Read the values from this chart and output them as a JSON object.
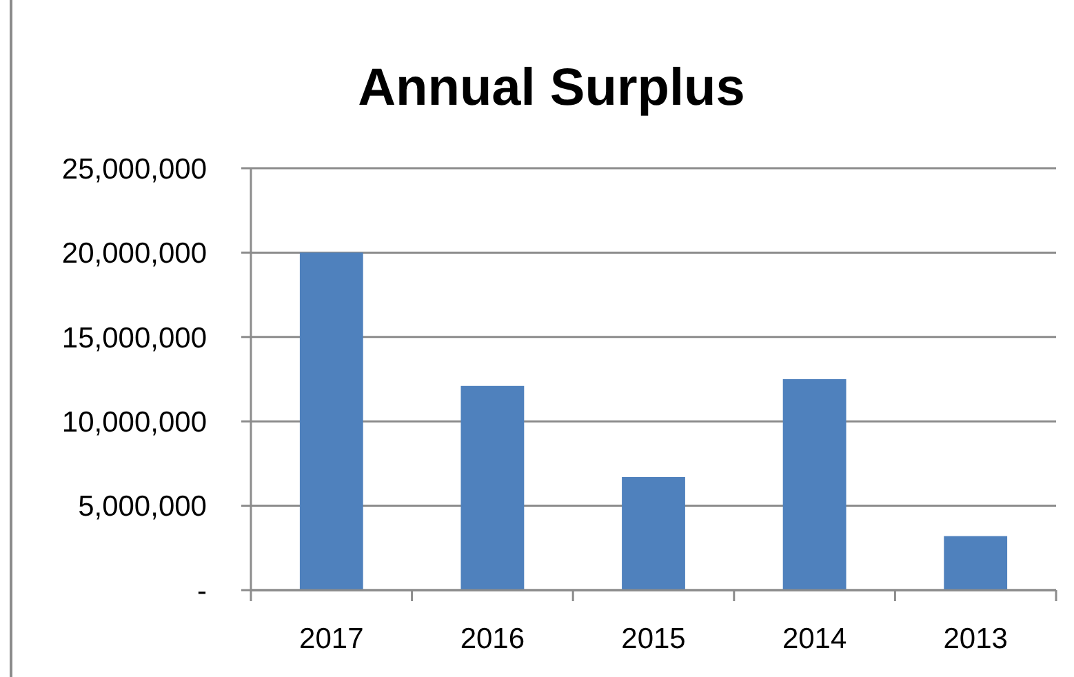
{
  "chart_data": {
    "type": "bar",
    "title": "Annual Surplus",
    "categories": [
      "2017",
      "2016",
      "2015",
      "2014",
      "2013"
    ],
    "values": [
      20000000,
      12100000,
      6700000,
      12500000,
      3200000
    ],
    "color": "#4f81bd",
    "ylim": [
      0,
      25000000
    ],
    "yticks": [
      {
        "value": 0,
        "label": "-"
      },
      {
        "value": 5000000,
        "label": "5,000,000"
      },
      {
        "value": 10000000,
        "label": "10,000,000"
      },
      {
        "value": 15000000,
        "label": "15,000,000"
      },
      {
        "value": 20000000,
        "label": "20,000,000"
      },
      {
        "value": 25000000,
        "label": "25,000,000"
      }
    ],
    "grid": "y"
  }
}
